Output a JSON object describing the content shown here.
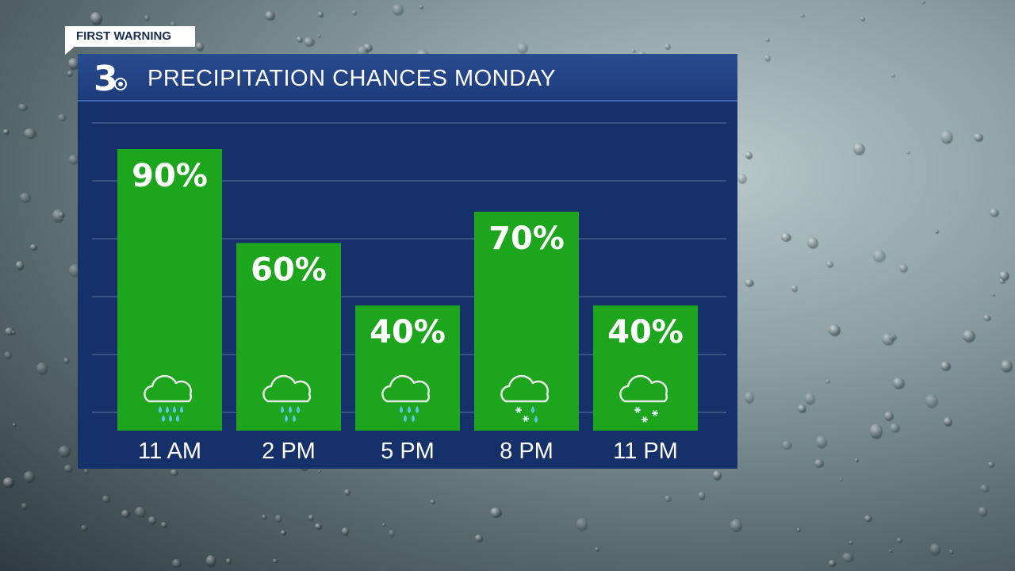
{
  "tag": {
    "label": "FIRST WARNING"
  },
  "logo": {
    "glyph": "3"
  },
  "colors": {
    "bar_fill": "#1ea51e",
    "panel": "#16306a",
    "header": "#234585",
    "gridline": "#3a5387",
    "icon_stroke": "#e8e8e8",
    "rain_drop": "#5cc8e8",
    "snow_flake": "#e8f4ff"
  },
  "chart_data": {
    "type": "bar",
    "title": "PRECIPITATION CHANCES MONDAY",
    "categories": [
      "11 AM",
      "2 PM",
      "5 PM",
      "8 PM",
      "11 PM"
    ],
    "values": [
      90,
      60,
      40,
      70,
      40
    ],
    "value_labels": [
      "90%",
      "60%",
      "40%",
      "70%",
      "40%"
    ],
    "icons": [
      "rain-cloud-icon",
      "rain-cloud-icon",
      "rain-cloud-icon",
      "rain-snow-cloud-icon",
      "snow-cloud-icon"
    ],
    "unit": "%",
    "ylim": [
      0,
      100
    ],
    "grid": true,
    "legend": "none"
  }
}
